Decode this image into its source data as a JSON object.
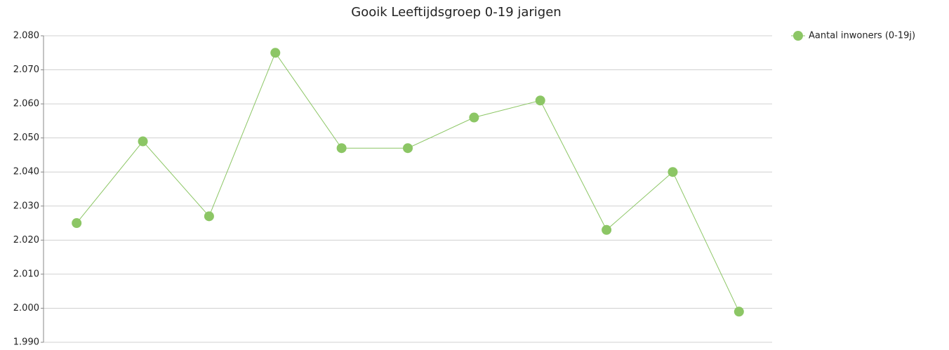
{
  "chart_data": {
    "type": "line",
    "title": "Gooik  Leeftijdsgroep 0-19 jarigen",
    "categories": [
      null,
      null,
      null,
      null,
      null,
      null,
      null,
      null,
      null,
      null,
      null
    ],
    "series": [
      {
        "name": "Aantal inwoners (0-19j)",
        "color": "#8cc665",
        "values": [
          2025,
          2049,
          2027,
          2075,
          2047,
          2047,
          2056,
          2061,
          2023,
          2040,
          1999
        ]
      }
    ],
    "ylim": [
      1990,
      2080
    ],
    "yticks": [
      {
        "value": 1990,
        "label": "1.990"
      },
      {
        "value": 2000,
        "label": "2.000"
      },
      {
        "value": 2010,
        "label": "2.010"
      },
      {
        "value": 2020,
        "label": "2.020"
      },
      {
        "value": 2030,
        "label": "2.030"
      },
      {
        "value": 2040,
        "label": "2.040"
      },
      {
        "value": 2050,
        "label": "2.050"
      },
      {
        "value": 2060,
        "label": "2.060"
      },
      {
        "value": 2070,
        "label": "2.070"
      },
      {
        "value": 2080,
        "label": "2.080"
      }
    ],
    "grid": true,
    "legend": "right"
  }
}
